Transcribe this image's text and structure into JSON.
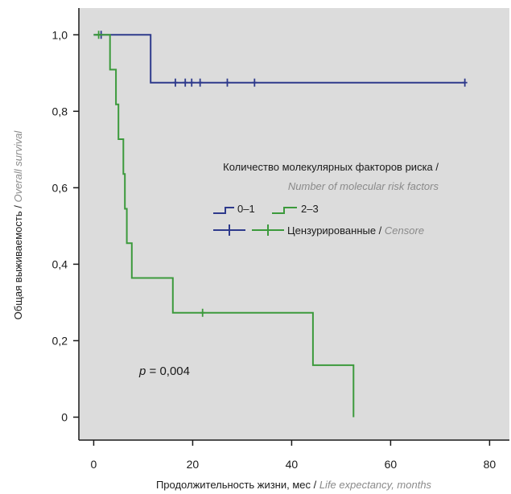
{
  "chart_data": {
    "type": "line",
    "subtype": "kaplan-meier-step",
    "title": "",
    "xlabel_ru": "Продолжительность жизни, мес / ",
    "xlabel_en": "Life expectancy, months",
    "ylabel_ru": "Общая выживаемость / ",
    "ylabel_en": "Overall survival",
    "xlim": [
      -3,
      84
    ],
    "ylim": [
      -0.06,
      1.07
    ],
    "x_ticks": [
      0,
      20,
      40,
      60,
      80
    ],
    "y_ticks": [
      1.0,
      0.8,
      0.6,
      0.4,
      0.2,
      0
    ],
    "x_tick_labels": [
      "0",
      "20",
      "40",
      "60",
      "80"
    ],
    "y_tick_labels": [
      "1,0",
      "0,8",
      "0,6",
      "0,4",
      "0,2",
      "0"
    ],
    "plot_background": "#dcdcdc",
    "grid": false,
    "legend": {
      "placement": "center-right",
      "title_ru": "Количество молекулярных факторов риска /",
      "title_en": "Number of molecular risk factors",
      "censored_label_ru": "Цензурированные / ",
      "censored_label_en": "Censore"
    },
    "annotation": {
      "italic": "p",
      "text": " = 0,004"
    },
    "series": [
      {
        "name": "0–1",
        "color": "#2e3a8c",
        "steps": [
          [
            0,
            1.0
          ],
          [
            11.5,
            1.0
          ],
          [
            11.5,
            0.875
          ],
          [
            75,
            0.875
          ]
        ],
        "censored": [
          [
            1.5,
            1.0
          ],
          [
            16.5,
            0.875
          ],
          [
            18.5,
            0.875
          ],
          [
            19.8,
            0.875
          ],
          [
            21.5,
            0.875
          ],
          [
            27,
            0.875
          ],
          [
            32.5,
            0.875
          ],
          [
            75,
            0.875
          ]
        ]
      },
      {
        "name": "2–3",
        "color": "#3c9a3c",
        "steps": [
          [
            0,
            1.0
          ],
          [
            3.3,
            1.0
          ],
          [
            3.3,
            0.909
          ],
          [
            4.5,
            0.909
          ],
          [
            4.5,
            0.818
          ],
          [
            5.0,
            0.818
          ],
          [
            5.0,
            0.727
          ],
          [
            6.0,
            0.727
          ],
          [
            6.0,
            0.636
          ],
          [
            6.3,
            0.636
          ],
          [
            6.3,
            0.545
          ],
          [
            6.7,
            0.545
          ],
          [
            6.7,
            0.455
          ],
          [
            7.7,
            0.455
          ],
          [
            7.7,
            0.364
          ],
          [
            16.0,
            0.364
          ],
          [
            16.0,
            0.273
          ],
          [
            44.3,
            0.273
          ],
          [
            44.3,
            0.136
          ],
          [
            52.5,
            0.136
          ],
          [
            52.5,
            0.0
          ]
        ],
        "censored": [
          [
            1.0,
            1.0
          ],
          [
            22,
            0.273
          ]
        ]
      }
    ]
  }
}
